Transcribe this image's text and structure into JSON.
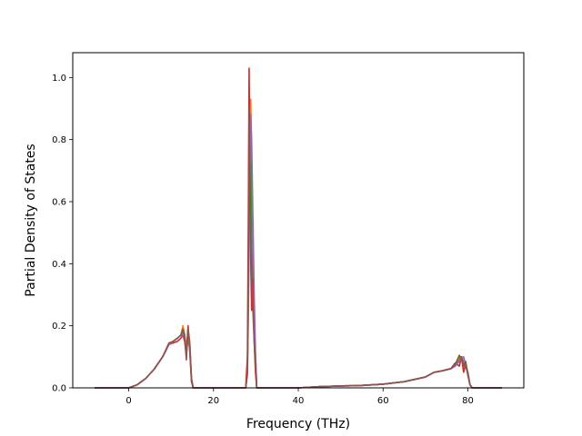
{
  "chart_data": {
    "type": "line",
    "title": "",
    "xlabel": "Frequency (THz)",
    "ylabel": "Partial Density of States",
    "xlim": [
      -13.2,
      93.2
    ],
    "ylim": [
      0.0,
      1.08
    ],
    "xticks": [
      0,
      20,
      40,
      60,
      80
    ],
    "yticks": [
      0.0,
      0.2,
      0.4,
      0.6,
      0.8,
      1.0
    ],
    "xtick_labels": [
      "0",
      "20",
      "40",
      "60",
      "80"
    ],
    "ytick_labels": [
      "0.0",
      "0.2",
      "0.4",
      "0.6",
      "0.8",
      "1.0"
    ],
    "grid": false,
    "legend": "none",
    "series": [
      {
        "color": "#1f77b4",
        "x": [
          -8,
          0,
          2,
          4,
          6,
          8,
          9.5,
          10.5,
          11.5,
          12.3,
          12.8,
          13.2,
          13.6,
          14.0,
          14.4,
          14.8,
          15.2,
          27.6,
          28.0,
          28.2,
          28.4,
          28.6,
          28.8,
          29.0,
          29.3,
          29.6,
          29.9,
          30.2,
          40,
          45,
          50,
          55,
          60,
          65,
          70,
          72,
          74,
          76,
          77,
          78,
          78.5,
          79,
          79.5,
          80,
          80.5,
          81,
          88
        ],
        "y": [
          0,
          0,
          0.01,
          0.03,
          0.06,
          0.1,
          0.14,
          0.15,
          0.16,
          0.17,
          0.18,
          0.16,
          0.12,
          0.18,
          0.14,
          0.03,
          0,
          0,
          0.05,
          0.3,
          0.6,
          0.82,
          0.72,
          0.5,
          0.32,
          0.2,
          0.1,
          0,
          0,
          0.004,
          0.006,
          0.008,
          0.012,
          0.02,
          0.035,
          0.05,
          0.055,
          0.062,
          0.07,
          0.09,
          0.1,
          0.08,
          0.07,
          0.05,
          0.01,
          0,
          0
        ]
      },
      {
        "color": "#ff7f0e",
        "x": [
          -8,
          0,
          2,
          4,
          6,
          8,
          9.5,
          10.5,
          11.5,
          12.3,
          12.8,
          13.2,
          13.6,
          14.0,
          14.4,
          14.8,
          15.2,
          27.6,
          28.0,
          28.2,
          28.4,
          28.6,
          28.8,
          29.0,
          29.3,
          29.6,
          29.9,
          30.2,
          40,
          45,
          50,
          55,
          60,
          65,
          70,
          72,
          74,
          76,
          77,
          78,
          78.5,
          79,
          79.5,
          80,
          80.5,
          81,
          88
        ],
        "y": [
          0,
          0,
          0.01,
          0.03,
          0.06,
          0.1,
          0.14,
          0.15,
          0.16,
          0.17,
          0.2,
          0.17,
          0.13,
          0.19,
          0.15,
          0.03,
          0,
          0,
          0.06,
          0.3,
          0.55,
          0.8,
          0.93,
          0.7,
          0.4,
          0.22,
          0.1,
          0,
          0,
          0.004,
          0.006,
          0.008,
          0.012,
          0.02,
          0.035,
          0.05,
          0.055,
          0.062,
          0.07,
          0.1,
          0.1,
          0.085,
          0.07,
          0.05,
          0.01,
          0,
          0
        ]
      },
      {
        "color": "#2ca02c",
        "x": [
          -8,
          0,
          2,
          4,
          6,
          8,
          9.5,
          10.5,
          11.5,
          12.3,
          12.8,
          13.2,
          13.6,
          14.0,
          14.4,
          14.8,
          15.2,
          27.6,
          28.0,
          28.2,
          28.4,
          28.6,
          28.8,
          29.0,
          29.3,
          29.6,
          29.9,
          30.2,
          40,
          45,
          50,
          55,
          60,
          65,
          70,
          72,
          74,
          76,
          77,
          78,
          78.5,
          79,
          79.5,
          80,
          80.5,
          81,
          88
        ],
        "y": [
          0,
          0,
          0.01,
          0.03,
          0.06,
          0.1,
          0.14,
          0.15,
          0.16,
          0.17,
          0.18,
          0.16,
          0.12,
          0.17,
          0.13,
          0.03,
          0,
          0,
          0.05,
          0.28,
          0.62,
          0.85,
          0.7,
          0.45,
          0.3,
          0.18,
          0.08,
          0,
          0,
          0.004,
          0.006,
          0.008,
          0.012,
          0.02,
          0.035,
          0.05,
          0.055,
          0.062,
          0.07,
          0.09,
          0.1,
          0.08,
          0.065,
          0.05,
          0.01,
          0,
          0
        ]
      },
      {
        "color": "#d62728",
        "x": [
          -8,
          0,
          2,
          4,
          6,
          8,
          9.5,
          10.5,
          11.5,
          12.3,
          12.8,
          13.2,
          13.6,
          14.0,
          14.4,
          14.8,
          15.2,
          27.6,
          28.0,
          28.2,
          28.4,
          28.6,
          28.8,
          29.0,
          29.3,
          29.6,
          29.9,
          30.2,
          40,
          45,
          50,
          55,
          60,
          65,
          70,
          72,
          74,
          76,
          77,
          78,
          78.5,
          79,
          79.5,
          80,
          80.5,
          81,
          88
        ],
        "y": [
          0,
          0,
          0.01,
          0.03,
          0.06,
          0.1,
          0.14,
          0.145,
          0.15,
          0.16,
          0.17,
          0.15,
          0.1,
          0.2,
          0.12,
          0.02,
          0,
          0,
          0.1,
          0.5,
          1.03,
          0.7,
          0.4,
          0.25,
          0.35,
          0.15,
          0.05,
          0,
          0,
          0.004,
          0.006,
          0.008,
          0.012,
          0.02,
          0.035,
          0.05,
          0.055,
          0.062,
          0.08,
          0.07,
          0.1,
          0.05,
          0.08,
          0.04,
          0.01,
          0,
          0
        ]
      },
      {
        "color": "#9467bd",
        "x": [
          -8,
          0,
          2,
          4,
          6,
          8,
          9.5,
          10.5,
          11.5,
          12.3,
          12.8,
          13.2,
          13.6,
          14.0,
          14.4,
          14.8,
          15.2,
          27.6,
          28.0,
          28.2,
          28.4,
          28.6,
          28.8,
          29.0,
          29.3,
          29.6,
          29.9,
          30.2,
          40,
          45,
          50,
          55,
          60,
          65,
          70,
          72,
          74,
          76,
          77,
          78,
          78.5,
          79,
          79.5,
          80,
          80.5,
          81,
          88
        ],
        "y": [
          0,
          0,
          0.01,
          0.03,
          0.06,
          0.1,
          0.14,
          0.15,
          0.16,
          0.17,
          0.17,
          0.16,
          0.11,
          0.16,
          0.12,
          0.03,
          0,
          0,
          0.04,
          0.2,
          0.45,
          0.7,
          0.88,
          0.8,
          0.55,
          0.3,
          0.12,
          0,
          0,
          0.004,
          0.006,
          0.008,
          0.012,
          0.02,
          0.035,
          0.05,
          0.055,
          0.062,
          0.07,
          0.085,
          0.095,
          0.1,
          0.075,
          0.05,
          0.01,
          0,
          0
        ]
      },
      {
        "color": "#8c564b",
        "x": [
          -8,
          0,
          2,
          4,
          6,
          8,
          9.5,
          10.5,
          11.5,
          12.3,
          12.8,
          13.2,
          13.6,
          14.0,
          14.4,
          14.8,
          15.2,
          27.6,
          28.0,
          28.2,
          28.4,
          28.6,
          28.8,
          29.0,
          29.3,
          29.6,
          29.9,
          30.2,
          40,
          45,
          50,
          55,
          60,
          65,
          70,
          72,
          74,
          76,
          77,
          78,
          78.5,
          79,
          79.5,
          80,
          80.5,
          81,
          88
        ],
        "y": [
          0,
          0,
          0.01,
          0.03,
          0.06,
          0.1,
          0.145,
          0.15,
          0.16,
          0.17,
          0.19,
          0.17,
          0.09,
          0.19,
          0.14,
          0.03,
          0,
          0,
          0.05,
          0.35,
          0.9,
          0.6,
          0.45,
          0.35,
          0.25,
          0.15,
          0.07,
          0,
          0,
          0.004,
          0.006,
          0.008,
          0.012,
          0.02,
          0.035,
          0.05,
          0.055,
          0.062,
          0.075,
          0.105,
          0.09,
          0.07,
          0.085,
          0.045,
          0.01,
          0,
          0
        ]
      }
    ]
  }
}
